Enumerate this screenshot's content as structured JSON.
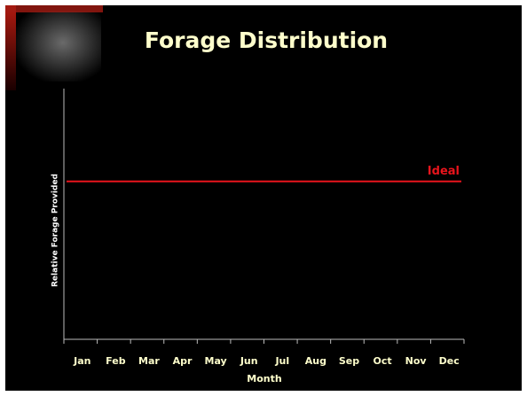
{
  "chart_data": {
    "type": "line",
    "title": "Forage Distribution",
    "x_label": "Month",
    "y_label": "Relative Forage Provided",
    "categories": [
      "Jan",
      "Feb",
      "Mar",
      "Apr",
      "May",
      "Jun",
      "Jul",
      "Aug",
      "Sep",
      "Oct",
      "Nov",
      "Dec"
    ],
    "series": [
      {
        "name": "Ideal",
        "color": "#e8141c",
        "values": [
          63,
          63,
          63,
          63,
          63,
          63,
          63,
          63,
          63,
          63,
          63,
          63
        ]
      }
    ],
    "ylim": [
      0,
      100
    ]
  }
}
